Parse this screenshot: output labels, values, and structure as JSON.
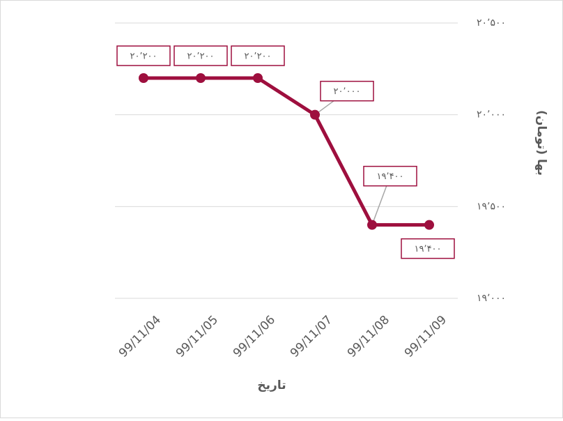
{
  "chart_data": {
    "type": "line",
    "x_label": "تاریخ",
    "y_label": "بها (تومان)",
    "categories": [
      "99/11/04",
      "99/11/05",
      "99/11/06",
      "99/11/07",
      "99/11/08",
      "99/11/09"
    ],
    "series": [
      {
        "name": "بها",
        "color": "#9e0f3e",
        "values": [
          20200,
          20200,
          20200,
          20000,
          19400,
          19400
        ],
        "value_labels": [
          "۲۰٬۲۰۰",
          "۲۰٬۲۰۰",
          "۲۰٬۲۰۰",
          "۲۰٬۰۰۰",
          "۱۹٬۴۰۰",
          "۱۹٬۴۰۰"
        ]
      }
    ],
    "ylim": [
      19000,
      20500
    ],
    "yticks": [
      {
        "value": 19000,
        "label": "۱۹٬۰۰۰"
      },
      {
        "value": 19500,
        "label": "۱۹٬۵۰۰"
      },
      {
        "value": 20000,
        "label": "۲۰٬۰۰۰"
      },
      {
        "value": 20500,
        "label": "۲۰٬۵۰۰"
      }
    ],
    "grid": true
  }
}
